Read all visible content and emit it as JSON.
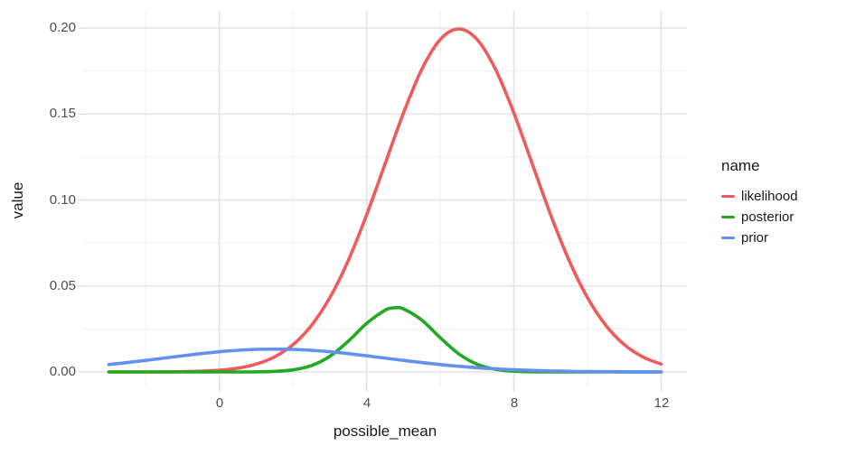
{
  "chart_data": {
    "type": "line",
    "title": "",
    "xlabel": "possible_mean",
    "ylabel": "value",
    "x_ticks": [
      "0",
      "4",
      "8",
      "12"
    ],
    "x_tick_values": [
      0,
      4,
      8,
      12
    ],
    "x_minor_values": [
      -2,
      2,
      6,
      10
    ],
    "y_ticks": [
      "0.00",
      "0.05",
      "0.10",
      "0.15",
      "0.20"
    ],
    "y_tick_values": [
      0,
      0.05,
      0.1,
      0.15,
      0.2
    ],
    "y_minor_values": [
      0.025,
      0.075,
      0.125,
      0.175
    ],
    "xlim": [
      -3.7,
      12.7
    ],
    "ylim": [
      -0.0084,
      0.21
    ],
    "grid": "major-and-minor, light gray on white",
    "legend_title": "name",
    "legend_position": "right",
    "series": [
      {
        "name": "likelihood",
        "color": "#EF5B5B",
        "points": [
          [
            -3,
            3e-06
          ],
          [
            -2.5,
            8e-06
          ],
          [
            -2,
            2.4e-05
          ],
          [
            -1.5,
            6.7e-05
          ],
          [
            -1,
            0.000176
          ],
          [
            -0.5,
            0.000436
          ],
          [
            0,
            0.001016
          ],
          [
            0.5,
            0.002216
          ],
          [
            1,
            0.00455
          ],
          [
            1.5,
            0.008764
          ],
          [
            2,
            0.01587
          ],
          [
            2.5,
            0.026997
          ],
          [
            3,
            0.043139
          ],
          [
            3.5,
            0.06476
          ],
          [
            4,
            0.091323
          ],
          [
            4.5,
            0.120985
          ],
          [
            5,
            0.150571
          ],
          [
            5.5,
            0.176036
          ],
          [
            6,
            0.193336
          ],
          [
            6.5,
            0.199471
          ],
          [
            7,
            0.193336
          ],
          [
            7.5,
            0.176036
          ],
          [
            8,
            0.150571
          ],
          [
            8.5,
            0.120985
          ],
          [
            9,
            0.091323
          ],
          [
            9.5,
            0.06476
          ],
          [
            10,
            0.043139
          ],
          [
            10.5,
            0.026997
          ],
          [
            11,
            0.01587
          ],
          [
            11.5,
            0.008764
          ],
          [
            12,
            0.00455
          ]
        ]
      },
      {
        "name": "posterior",
        "color": "#22A822",
        "points": [
          [
            -3,
            0
          ],
          [
            -2.5,
            0
          ],
          [
            -2,
            0
          ],
          [
            -1.5,
            0
          ],
          [
            -1,
            0
          ],
          [
            -0.5,
            1e-06
          ],
          [
            0,
            2e-06
          ],
          [
            0.5,
            1.2e-05
          ],
          [
            1,
            6.8e-05
          ],
          [
            1.5,
            0.000321
          ],
          [
            2,
            0.001215
          ],
          [
            2.5,
            0.003702
          ],
          [
            3,
            0.009063
          ],
          [
            3.5,
            0.017832
          ],
          [
            4,
            0.028205
          ],
          [
            4.5,
            0.035862
          ],
          [
            4.75,
            0.037266
          ],
          [
            5,
            0.036654
          ],
          [
            5.5,
            0.030118
          ],
          [
            6,
            0.01989
          ],
          [
            6.5,
            0.010561
          ],
          [
            7,
            0.004507
          ],
          [
            7.5,
            0.001546
          ],
          [
            8,
            0.000427
          ],
          [
            8.5,
            9.4e-05
          ],
          [
            9,
            1.7e-05
          ],
          [
            9.5,
            3e-06
          ],
          [
            10,
            0
          ],
          [
            10.5,
            0
          ],
          [
            11,
            0
          ],
          [
            11.5,
            0
          ],
          [
            12,
            0
          ]
        ]
      },
      {
        "name": "prior",
        "color": "#6190EE",
        "points": [
          [
            -3,
            0.004318
          ],
          [
            -2.5,
            0.005467
          ],
          [
            -2,
            0.006733
          ],
          [
            -1.5,
            0.008066
          ],
          [
            -1,
            0.009397
          ],
          [
            -0.5,
            0.010648
          ],
          [
            0,
            0.011736
          ],
          [
            0.5,
            0.012579
          ],
          [
            1,
            0.013115
          ],
          [
            1.5,
            0.013298
          ],
          [
            2,
            0.013115
          ],
          [
            2.5,
            0.012579
          ],
          [
            3,
            0.011736
          ],
          [
            3.5,
            0.010648
          ],
          [
            4,
            0.009397
          ],
          [
            4.5,
            0.008066
          ],
          [
            5,
            0.006733
          ],
          [
            5.5,
            0.005467
          ],
          [
            6,
            0.004318
          ],
          [
            6.5,
            0.003317
          ],
          [
            7,
            0.002478
          ],
          [
            7.5,
            0.0018
          ],
          [
            8,
            0.001271
          ],
          [
            8.5,
            0.000874
          ],
          [
            9,
            0.000584
          ],
          [
            9.5,
            0.00038
          ],
          [
            10,
            0.00024
          ],
          [
            10.5,
            0.000148
          ],
          [
            11,
            8.8e-05
          ],
          [
            11.5,
            5.1e-05
          ],
          [
            12,
            2.9e-05
          ]
        ]
      }
    ],
    "colors": {
      "major_grid": "#E4E4E4",
      "minor_grid": "#EFEFEF",
      "tick_mark": "#D8D8D8",
      "tick_text": "#4D4D4D",
      "title_text": "#1A1A1A",
      "background": "#FFFFFF"
    }
  }
}
